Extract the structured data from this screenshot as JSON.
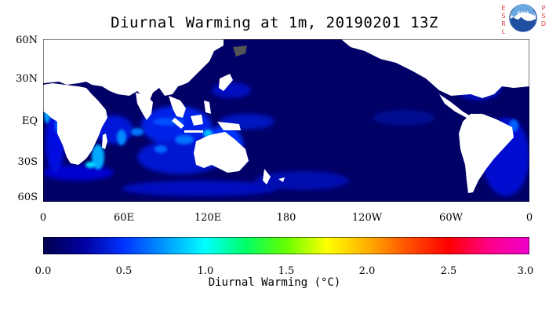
{
  "title": "Diurnal Warming at 1m, 20190201 13Z",
  "logo": {
    "left_letters": [
      "E",
      "S",
      "R",
      "L"
    ],
    "right_letters": [
      "P",
      "S",
      "D"
    ],
    "name": "NOAA",
    "icon": "noaa-logo-icon"
  },
  "map": {
    "lat_labels": [
      "60N",
      "30N",
      "EQ",
      "30S",
      "60S"
    ],
    "lon_labels": [
      "0",
      "60E",
      "120E",
      "180",
      "120W",
      "60W",
      "0"
    ],
    "ocean_color": "#000066",
    "land_color": "#ffffff",
    "ice_color": "#555555"
  },
  "colorbar": {
    "ticks": [
      "0.0",
      "0.5",
      "1.0",
      "1.5",
      "2.0",
      "2.5",
      "3.0"
    ],
    "label": "Diurnal Warming (°C)",
    "range": [
      0.0,
      3.0
    ],
    "colors": [
      "#00004d",
      "#0000a0",
      "#0033ff",
      "#0099ff",
      "#00ffff",
      "#00ff66",
      "#66ff00",
      "#ffff00",
      "#ffb000",
      "#ff5000",
      "#ff0000",
      "#ff0088",
      "#ee00cc"
    ]
  }
}
